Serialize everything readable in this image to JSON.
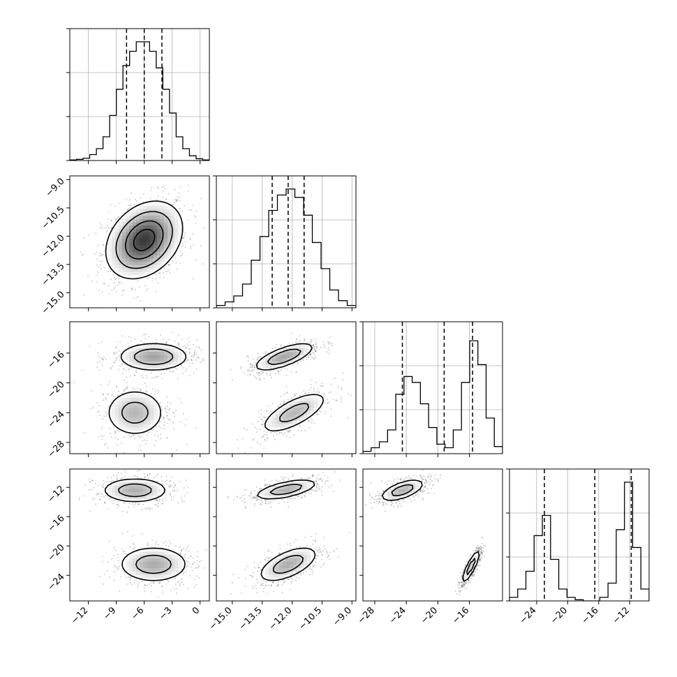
{
  "chart_data": {
    "type": "corner",
    "params": [
      {
        "range": [
          -14,
          1
        ],
        "ticks": [
          -12,
          -9,
          -6,
          -3,
          0
        ],
        "tick_labels": [
          "−12",
          "−9",
          "−6",
          "−3",
          "0"
        ],
        "quantiles": [
          -7.9,
          -6.0,
          -4.1
        ],
        "hist": [
          0.005,
          0.01,
          0.02,
          0.05,
          0.1,
          0.2,
          0.38,
          0.6,
          0.8,
          0.92,
          1.0,
          1.0,
          0.92,
          0.78,
          0.6,
          0.4,
          0.2,
          0.1,
          0.04,
          0.015,
          0.005
        ]
      },
      {
        "range": [
          -15.8,
          -8.8
        ],
        "ticks": [
          -15.0,
          -13.5,
          -12.0,
          -10.5,
          -9.0
        ],
        "tick_labels": [
          "−15.0",
          "−13.5",
          "−12.0",
          "−10.5",
          "−9.0"
        ],
        "quantiles": [
          -13.0,
          -12.2,
          -11.4
        ],
        "hist": [
          0.02,
          0.05,
          0.1,
          0.2,
          0.4,
          0.6,
          0.82,
          0.95,
          1.0,
          0.93,
          0.78,
          0.55,
          0.33,
          0.15,
          0.06,
          0.02
        ]
      },
      {
        "range": [
          -29.5,
          -11.8
        ],
        "ticks": [
          -28,
          -24,
          -20,
          -16
        ],
        "tick_labels": [
          "−28",
          "−24",
          "−20",
          "−16"
        ],
        "quantiles": [
          -24.5,
          -19.2,
          -15.6
        ],
        "hist": [
          0.02,
          0.05,
          0.1,
          0.2,
          0.5,
          0.65,
          0.6,
          0.42,
          0.22,
          0.08,
          0.05,
          0.2,
          0.6,
          0.95,
          0.75,
          0.3,
          0.06
        ]
      },
      {
        "range": [
          -27.5,
          -9.5
        ],
        "ticks": [
          -24,
          -20,
          -16,
          -12
        ],
        "tick_labels": [
          "−24",
          "−20",
          "−16",
          "−12"
        ],
        "quantiles": [
          -23.0,
          -16.5,
          -11.8
        ],
        "hist": [
          0.03,
          0.1,
          0.25,
          0.55,
          0.72,
          0.35,
          0.1,
          0.03,
          0.01,
          0.0,
          0.0,
          0.03,
          0.15,
          0.6,
          1.0,
          0.45,
          0.1
        ]
      }
    ],
    "blobs": {
      "1-0": [
        {
          "cx": -6.0,
          "cy": -12.2,
          "sx": 2.0,
          "sy": 1.0,
          "rho": 0.3,
          "w": 1.0
        }
      ],
      "2-0": [
        {
          "cx": -5.0,
          "cy": -16.5,
          "sx": 2.0,
          "sy": 1.0,
          "rho": 0.0,
          "w": 0.55
        },
        {
          "cx": -7.0,
          "cy": -24.0,
          "sx": 1.7,
          "sy": 1.7,
          "rho": 0.0,
          "w": 0.45
        }
      ],
      "3-0": [
        {
          "cx": -7.0,
          "cy": -12.4,
          "sx": 1.9,
          "sy": 0.9,
          "rho": 0.0,
          "w": 0.5
        },
        {
          "cx": -5.0,
          "cy": -22.5,
          "sx": 2.0,
          "sy": 1.3,
          "rho": 0.0,
          "w": 0.5
        }
      ],
      "2-1": [
        {
          "cx": -12.4,
          "cy": -16.5,
          "sx": 0.8,
          "sy": 1.0,
          "rho": 0.7,
          "w": 0.55
        },
        {
          "cx": -11.9,
          "cy": -24.0,
          "sx": 0.9,
          "sy": 1.5,
          "rho": 0.7,
          "w": 0.45
        }
      ],
      "3-1": [
        {
          "cx": -12.3,
          "cy": -12.3,
          "sx": 0.85,
          "sy": 0.75,
          "rho": 0.6,
          "w": 0.5
        },
        {
          "cx": -12.2,
          "cy": -22.5,
          "sx": 0.8,
          "sy": 1.3,
          "rho": 0.6,
          "w": 0.5
        }
      ],
      "3-2": [
        {
          "cx": -24.5,
          "cy": -12.4,
          "sx": 1.5,
          "sy": 0.8,
          "rho": 0.6,
          "w": 0.5
        },
        {
          "cx": -15.8,
          "cy": -22.8,
          "sx": 0.6,
          "sy": 1.2,
          "rho": 0.85,
          "w": 0.5
        }
      ]
    },
    "levels": [
      0.12,
      0.32,
      0.6,
      0.85
    ]
  }
}
